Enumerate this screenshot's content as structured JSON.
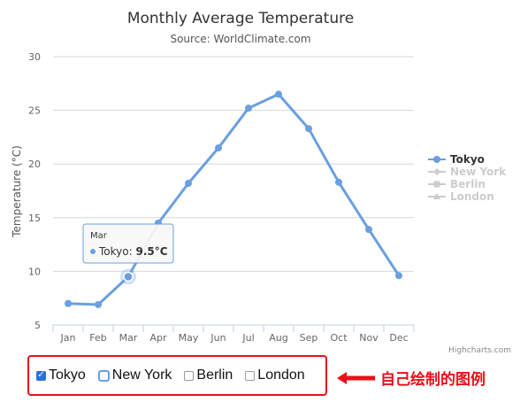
{
  "chart_data": {
    "type": "line",
    "title": "Monthly Average Temperature",
    "subtitle": "Source: WorldClimate.com",
    "ylabel": "Temperature (°C)",
    "xlabel": "",
    "categories": [
      "Jan",
      "Feb",
      "Mar",
      "Apr",
      "May",
      "Jun",
      "Jul",
      "Aug",
      "Sep",
      "Oct",
      "Nov",
      "Dec"
    ],
    "yticks": [
      "5",
      "10",
      "15",
      "20",
      "25",
      "30"
    ],
    "ylim": [
      5,
      30
    ],
    "grid": true,
    "legend_position": "right",
    "series": [
      {
        "name": "Tokyo",
        "values": [
          7.0,
          6.9,
          9.5,
          14.5,
          18.2,
          21.5,
          25.2,
          26.5,
          23.3,
          18.3,
          13.9,
          9.6
        ],
        "visible": true,
        "color": "#6a9fe0",
        "marker": "circle"
      },
      {
        "name": "New York",
        "visible": false,
        "marker": "diamond"
      },
      {
        "name": "Berlin",
        "visible": false,
        "marker": "square"
      },
      {
        "name": "London",
        "visible": false,
        "marker": "triangle"
      }
    ],
    "tooltip": {
      "category": "Mar",
      "series": "Tokyo",
      "label": "Tokyo: ",
      "value": "9.5°C"
    },
    "credits": "Highcharts.com"
  },
  "custom_legend": {
    "items": [
      {
        "label": "Tokyo",
        "checked": true
      },
      {
        "label": "New York",
        "checked": false
      },
      {
        "label": "Berlin",
        "checked": false
      },
      {
        "label": "London",
        "checked": false
      }
    ]
  },
  "annotation": {
    "text": "自己绘制的图例"
  },
  "colors": {
    "series": "#6a9fe0",
    "hidden": "#cccccc",
    "grid": "#d8d8d8",
    "highlight": "#e8101a",
    "checkbox": "#2b6fdc"
  }
}
